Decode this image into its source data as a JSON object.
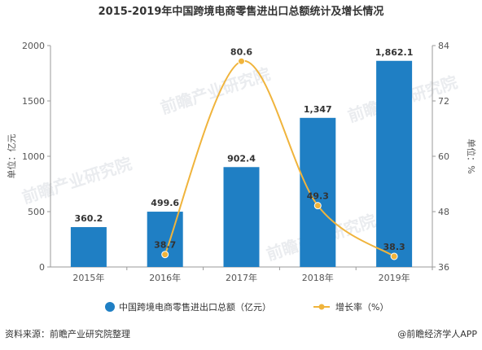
{
  "chart_data": {
    "type": "bar",
    "title": "2015-2019年中国跨境电商零售进出口总额统计及增长情况",
    "categories": [
      "2015年",
      "2016年",
      "2017年",
      "2018年",
      "2019年"
    ],
    "series": [
      {
        "name": "中国跨境电商零售进出口总额（亿元）",
        "type": "bar",
        "axis": "left",
        "values": [
          360.2,
          499.6,
          902.4,
          1347,
          1862.1
        ],
        "labels": [
          "360.2",
          "499.6",
          "902.4",
          "1,347",
          "1,862.1"
        ],
        "color": "#1f7fc4"
      },
      {
        "name": "增长率（%）",
        "type": "line",
        "axis": "right",
        "smooth": true,
        "values": [
          null,
          38.7,
          80.6,
          49.3,
          38.3
        ],
        "labels": [
          "",
          "38.7",
          "80.6",
          "49.3",
          "38.3"
        ],
        "color": "#f0b43c"
      }
    ],
    "y_left": {
      "label": "单位：亿元",
      "range": [
        0,
        2000
      ],
      "ticks": [
        "0",
        "500",
        "1000",
        "1500",
        "2000"
      ]
    },
    "y_right": {
      "label": "单位：%",
      "range": [
        36,
        84
      ],
      "ticks": [
        "36",
        "48",
        "60",
        "72",
        "84"
      ]
    },
    "grid": false,
    "legend_position": "bottom"
  },
  "footer": {
    "source": "资料来源：前瞻产业研究院整理",
    "brand": "@前瞻经济学人APP"
  },
  "watermark": {
    "text": "前瞻产业研究院"
  }
}
